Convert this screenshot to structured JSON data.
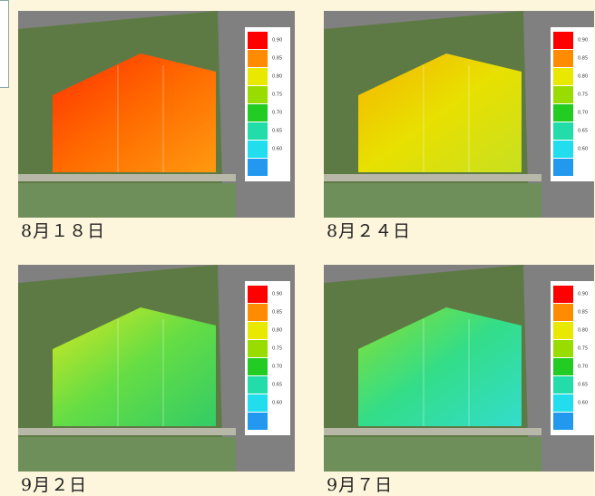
{
  "legend": {
    "labels": [
      "0.90",
      "0.85",
      "0.80",
      "0.75",
      "0.70",
      "0.65",
      "0.60"
    ],
    "colors": [
      "#ff0000",
      "#ff8c00",
      "#e8e800",
      "#99dd00",
      "#22cc22",
      "#22ddaa",
      "#22ddee",
      "#2299ee"
    ]
  },
  "panels": [
    {
      "caption": "8月１８日"
    },
    {
      "caption": "8月２４日"
    },
    {
      "caption": "9月２日"
    },
    {
      "caption": "9月７日"
    }
  ]
}
